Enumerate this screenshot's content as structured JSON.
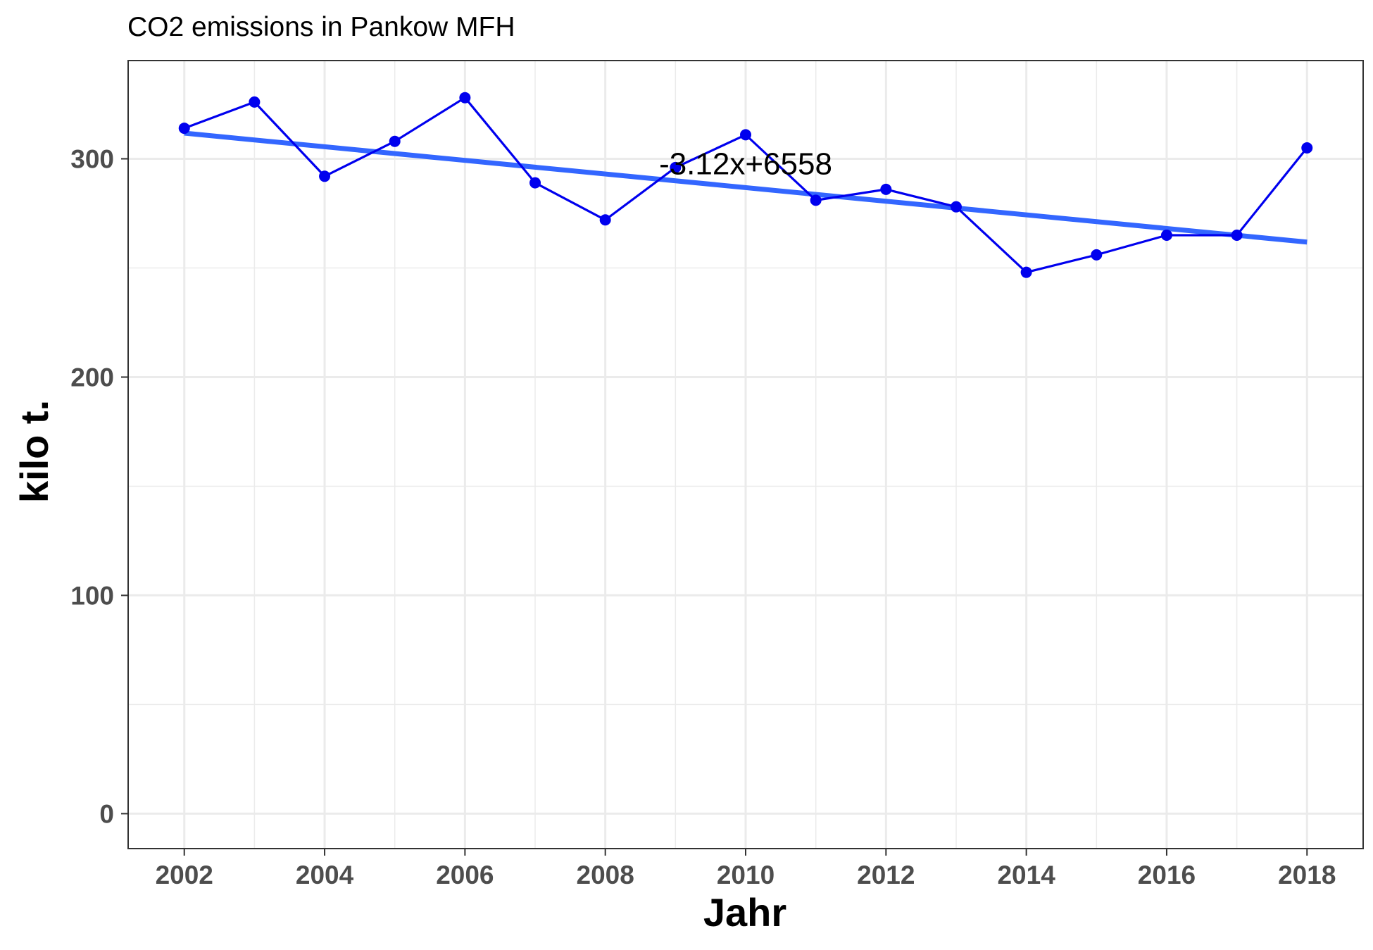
{
  "chart_data": {
    "type": "line",
    "title": "CO2 emissions in Pankow MFH",
    "xlabel": "Jahr",
    "ylabel": "kilo t.",
    "xlim": [
      2001.2,
      2018.8
    ],
    "ylim": [
      -16,
      345
    ],
    "x_ticks": [
      2002,
      2004,
      2006,
      2008,
      2010,
      2012,
      2014,
      2016,
      2018
    ],
    "y_ticks": [
      0,
      100,
      200,
      300
    ],
    "grid": true,
    "colors": {
      "series": "#0000ee",
      "trend": "#3366ff",
      "grid": "#ebebeb",
      "panel_border": "#333333",
      "tick_label": "#4d4d4d"
    },
    "series": [
      {
        "x": [
          2002,
          2003,
          2004,
          2005,
          2006,
          2007,
          2008,
          2009,
          2010,
          2011,
          2012,
          2013,
          2014,
          2015,
          2016,
          2017,
          2018
        ],
        "values": [
          314,
          326,
          292,
          308,
          328,
          289,
          272,
          296,
          311,
          281,
          286,
          278,
          248,
          256,
          265,
          265,
          305
        ]
      }
    ],
    "trendline": {
      "slope": -3.12,
      "intercept": 6558,
      "x": [
        2002,
        2018
      ]
    },
    "annotation": {
      "text": "-3.12x+6558",
      "x": 2010,
      "y": 298
    }
  }
}
